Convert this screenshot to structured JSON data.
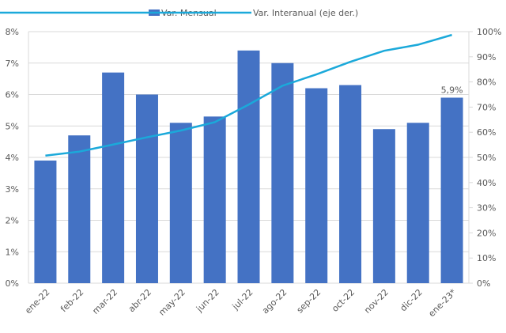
{
  "colors": {
    "bar": "#4472C4",
    "line": "#1BA9DA",
    "grid": "#D9D9D9"
  },
  "chart_data": {
    "type": "bar",
    "title": "",
    "categories": [
      "ene-22",
      "feb-22",
      "mar-22",
      "abr-22",
      "may-22",
      "jun-22",
      "jul-22",
      "ago-22",
      "sep-22",
      "oct-22",
      "nov-22",
      "dic-22",
      "ene-23*"
    ],
    "series": [
      {
        "name": "Var. Mensual",
        "type": "bar",
        "axis": "left",
        "values": [
          3.9,
          4.7,
          6.7,
          6.0,
          5.1,
          5.3,
          7.4,
          7.0,
          6.2,
          6.3,
          4.9,
          5.1,
          5.9
        ]
      },
      {
        "name": "Var. Interanual (eje der.)",
        "type": "line",
        "axis": "right",
        "values": [
          50.7,
          52.3,
          55.1,
          58.0,
          60.7,
          64.0,
          71.0,
          78.5,
          83.0,
          88.0,
          92.4,
          94.8,
          98.7
        ]
      }
    ],
    "annotations": [
      {
        "category": "ene-23*",
        "text": "5,9%"
      }
    ],
    "left_axis": {
      "ylim": [
        0,
        8
      ],
      "ticks": [
        "0%",
        "1%",
        "2%",
        "3%",
        "4%",
        "5%",
        "6%",
        "7%",
        "8%"
      ]
    },
    "right_axis": {
      "ylim": [
        0,
        100
      ],
      "ticks": [
        "0%",
        "10%",
        "20%",
        "30%",
        "40%",
        "50%",
        "60%",
        "70%",
        "80%",
        "90%",
        "100%"
      ]
    },
    "legend": "top",
    "grid": true
  }
}
